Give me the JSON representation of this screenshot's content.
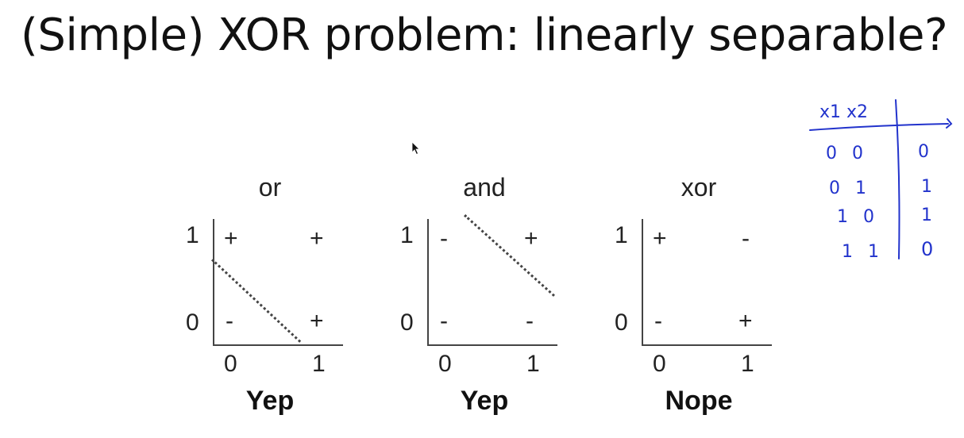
{
  "slide": {
    "title": "(Simple) XOR problem: linearly separable?"
  },
  "plots": [
    {
      "name": "or",
      "verdict": "Yep",
      "y_labels": [
        "1",
        "0"
      ],
      "x_labels": [
        "0",
        "1"
      ],
      "cells": {
        "tl": "+",
        "tr": "+",
        "bl": "-",
        "br": "+"
      }
    },
    {
      "name": "and",
      "verdict": "Yep",
      "y_labels": [
        "1",
        "0"
      ],
      "x_labels": [
        "0",
        "1"
      ],
      "cells": {
        "tl": "-",
        "tr": "+",
        "bl": "-",
        "br": "-"
      }
    },
    {
      "name": "xor",
      "verdict": "Nope",
      "y_labels": [
        "1",
        "0"
      ],
      "x_labels": [
        "0",
        "1"
      ],
      "cells": {
        "tl": "+",
        "tr": "-",
        "bl": "-",
        "br": "+"
      }
    }
  ],
  "handwritten_table": {
    "headers": [
      "x1 x2",
      ""
    ],
    "rows": [
      [
        "0 0",
        "0"
      ],
      [
        "0 1",
        "1"
      ],
      [
        "1 0",
        "1"
      ],
      [
        "1 1",
        "0"
      ]
    ],
    "ink_color": "#2233cc"
  },
  "colors": {
    "text": "#111111",
    "axis": "#444444",
    "ink": "#2233cc"
  }
}
